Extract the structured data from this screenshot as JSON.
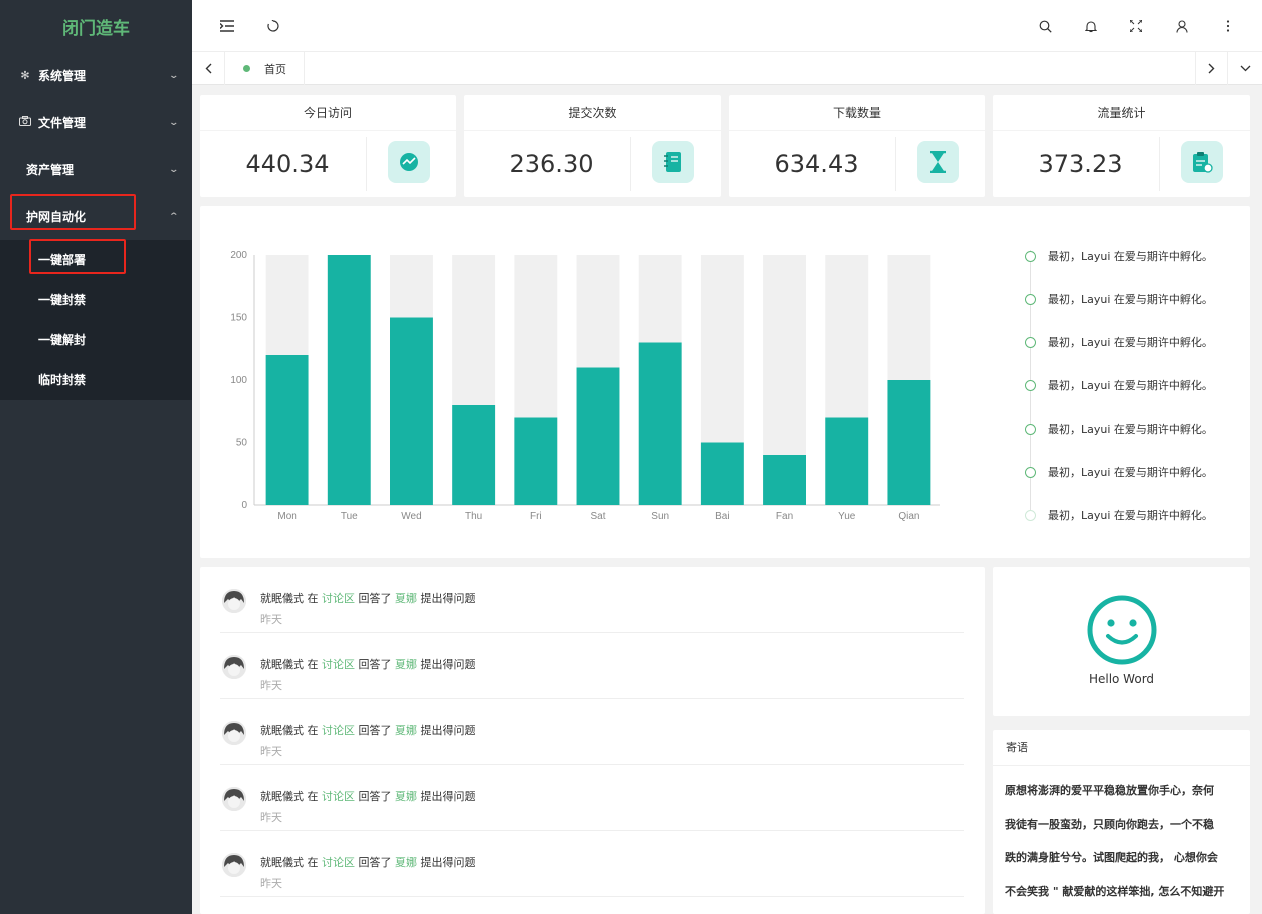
{
  "app": {
    "logo": "闭门造车"
  },
  "sidebar": {
    "items": [
      {
        "label": "系统管理",
        "icon": "gear-icon"
      },
      {
        "label": "文件管理",
        "icon": "camera-icon"
      },
      {
        "label": "资产管理"
      },
      {
        "label": "护网自动化",
        "expanded": true
      }
    ],
    "subitems": [
      "一键部署",
      "一键封禁",
      "一键解封",
      "临时封禁"
    ]
  },
  "tabs": {
    "home": "首页"
  },
  "stats": [
    {
      "title": "今日访问",
      "value": "440.34",
      "icon": "chart-icon"
    },
    {
      "title": "提交次数",
      "value": "236.30",
      "icon": "notebook-icon"
    },
    {
      "title": "下载数量",
      "value": "634.43",
      "icon": "hourglass-icon"
    },
    {
      "title": "流量统计",
      "value": "373.23",
      "icon": "clipboard-icon"
    }
  ],
  "chart_data": {
    "type": "bar",
    "categories": [
      "Mon",
      "Tue",
      "Wed",
      "Thu",
      "Fri",
      "Sat",
      "Sun",
      "Bai",
      "Fan",
      "Yue",
      "Qian"
    ],
    "values": [
      120,
      200,
      150,
      80,
      70,
      110,
      130,
      50,
      40,
      70,
      100
    ],
    "background_max": 200,
    "ylim": [
      0,
      200
    ],
    "yticks": [
      0,
      50,
      100,
      150,
      200
    ],
    "bar_color": "#17b3a3",
    "background_color": "#f0f0f0",
    "grid": false,
    "title": "",
    "xlabel": "",
    "ylabel": ""
  },
  "timeline": [
    "最初，Layui 在爱与期许中孵化。",
    "最初，Layui 在爱与期许中孵化。",
    "最初，Layui 在爱与期许中孵化。",
    "最初，Layui 在爱与期许中孵化。",
    "最初，Layui 在爱与期许中孵化。",
    "最初，Layui 在爱与期许中孵化。",
    "最初，Layui 在爱与期许中孵化。"
  ],
  "activity": [
    {
      "user": "就眠儀式",
      "in": "在",
      "place": "讨论区",
      "action": "回答了",
      "target": "夏娜",
      "tail": "提出得问题",
      "time": "昨天"
    },
    {
      "user": "就眠儀式",
      "in": "在",
      "place": "讨论区",
      "action": "回答了",
      "target": "夏娜",
      "tail": "提出得问题",
      "time": "昨天"
    },
    {
      "user": "就眠儀式",
      "in": "在",
      "place": "讨论区",
      "action": "回答了",
      "target": "夏娜",
      "tail": "提出得问题",
      "time": "昨天"
    },
    {
      "user": "就眠儀式",
      "in": "在",
      "place": "讨论区",
      "action": "回答了",
      "target": "夏娜",
      "tail": "提出得问题",
      "time": "昨天"
    },
    {
      "user": "就眠儀式",
      "in": "在",
      "place": "讨论区",
      "action": "回答了",
      "target": "夏娜",
      "tail": "提出得问题",
      "time": "昨天"
    }
  ],
  "hello": {
    "text": "Hello Word"
  },
  "message": {
    "title": "寄语",
    "lines": [
      "原想将澎湃的爱平平稳稳放置你手心，奈何",
      "我徒有一股蛮劲，只顾向你跑去，一个不稳",
      "跌的满身脏兮兮。试图爬起的我， 心想你会",
      "不会笑我 \" 献爱献的这样笨拙, 怎么不知避开"
    ]
  },
  "colors": {
    "accent": "#5fb878",
    "teal": "#17b3a3",
    "sidebar": "#2a3139",
    "highlight": "#e8261d"
  }
}
